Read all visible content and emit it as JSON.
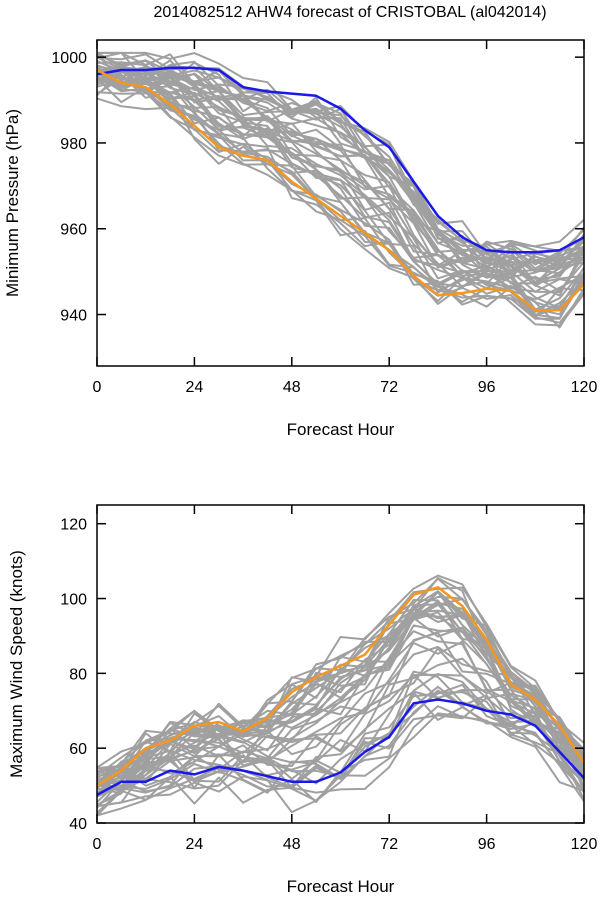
{
  "title": "2014082512 AHW4 forecast of CRISTOBAL (al042014)",
  "colors": {
    "ensemble": "#a0a0a0",
    "blue": "#1a1ae6",
    "orange": "#f5961e",
    "axis": "#000000"
  },
  "chart_data": [
    {
      "type": "line",
      "xlabel": "Forecast Hour",
      "ylabel": "Minimum Pressure (hPa)",
      "xlim": [
        0,
        120
      ],
      "ylim": [
        928,
        1004
      ],
      "xticks": [
        0,
        24,
        48,
        72,
        96,
        120
      ],
      "yticks": [
        940,
        960,
        980,
        1000
      ],
      "x": [
        0,
        6,
        12,
        18,
        24,
        30,
        36,
        42,
        48,
        54,
        60,
        66,
        72,
        78,
        84,
        90,
        96,
        102,
        108,
        114,
        120
      ],
      "series": [
        {
          "color": "blue",
          "values": [
            996,
            997,
            997,
            997.5,
            997.5,
            997,
            993,
            992,
            991.5,
            991,
            988,
            983,
            979,
            971,
            963,
            958,
            955,
            954.5,
            954.5,
            955,
            958
          ]
        },
        {
          "color": "orange",
          "values": [
            997,
            994,
            993,
            989,
            984,
            979,
            977,
            976,
            971,
            967,
            963,
            959,
            955,
            949,
            944.5,
            945,
            946,
            945.5,
            941,
            941,
            947
          ]
        }
      ],
      "ensemble_color": "ensemble"
    },
    {
      "type": "line",
      "xlabel": "Forecast Hour",
      "ylabel": "Maximum Wind Speed (knots)",
      "xlim": [
        0,
        120
      ],
      "ylim": [
        40,
        125
      ],
      "xticks": [
        0,
        24,
        48,
        72,
        96,
        120
      ],
      "yticks": [
        40,
        60,
        80,
        100,
        120
      ],
      "x": [
        0,
        6,
        12,
        18,
        24,
        30,
        36,
        42,
        48,
        54,
        60,
        66,
        72,
        78,
        84,
        90,
        96,
        102,
        108,
        114,
        120
      ],
      "series": [
        {
          "color": "blue",
          "values": [
            47.5,
            51,
            51,
            54,
            53,
            55,
            54,
            52.5,
            51,
            51,
            53.5,
            59,
            63,
            72,
            73,
            72,
            70,
            69,
            66,
            59,
            52
          ]
        },
        {
          "color": "orange",
          "values": [
            50,
            54,
            60,
            62,
            66,
            67,
            64.5,
            68,
            75,
            79,
            82,
            85,
            93,
            101,
            103,
            98,
            89,
            77,
            73,
            66,
            56
          ]
        }
      ],
      "ensemble_color": "ensemble"
    }
  ]
}
